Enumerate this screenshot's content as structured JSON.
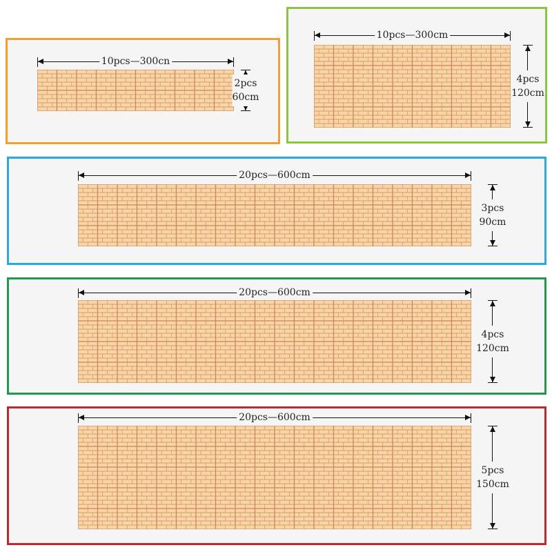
{
  "panels": [
    {
      "id": "orange",
      "border_color": "#f0a030",
      "width_label": "10pcs—300cn",
      "height_count": "2pcs",
      "height_cm": "60cm",
      "cols": 10,
      "rows": 2
    },
    {
      "id": "lime",
      "border_color": "#8cc63f",
      "width_label": "10pcs—300cm",
      "height_count": "4pcs",
      "height_cm": "120cm",
      "cols": 10,
      "rows": 4
    },
    {
      "id": "blue",
      "border_color": "#29a9e1",
      "width_label": "20pcs—600cm",
      "height_count": "3pcs",
      "height_cm": "90cm",
      "cols": 20,
      "rows": 3
    },
    {
      "id": "green",
      "border_color": "#1e9a4a",
      "width_label": "20pcs—600cm",
      "height_count": "4pcs",
      "height_cm": "120cm",
      "cols": 20,
      "rows": 4
    },
    {
      "id": "red",
      "border_color": "#c1272d",
      "width_label": "20pcs—600cm",
      "height_count": "5pcs",
      "height_cm": "150cm",
      "cols": 20,
      "rows": 5
    }
  ],
  "tile": {
    "fill": "#f9d4a4",
    "stroke": "#c8895a",
    "bricks_per_tile": 5
  }
}
